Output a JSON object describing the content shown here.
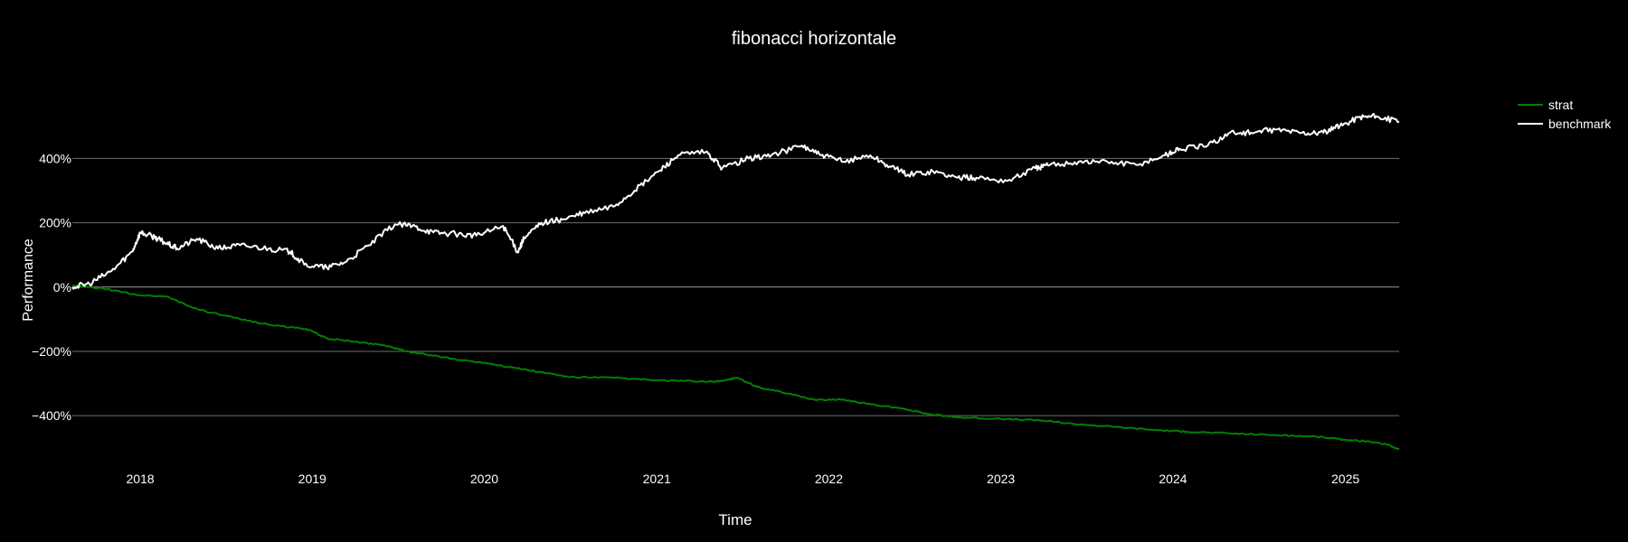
{
  "chart_data": {
    "type": "line",
    "title": "fibonacci horizontale",
    "xlabel": "Time",
    "ylabel": "Performance",
    "x_range": [
      "2017-08-10",
      "2025-04-25"
    ],
    "ylim": [
      -540,
      640
    ],
    "y_ticks": [
      400,
      200,
      0,
      -200,
      -400
    ],
    "y_tick_labels": [
      "400%",
      "200%",
      "0%",
      "−200%",
      "−400%"
    ],
    "x_ticks": [
      "2018-01-01",
      "2019-01-01",
      "2020-01-01",
      "2021-01-01",
      "2022-01-01",
      "2023-01-01",
      "2024-01-01",
      "2025-01-01"
    ],
    "x_tick_labels": [
      "2018",
      "2019",
      "2020",
      "2021",
      "2022",
      "2023",
      "2024",
      "2025"
    ],
    "grid": "horizontal",
    "legend_position": "top-right",
    "series": [
      {
        "name": "strat",
        "color": "#008000",
        "x": [
          "2017-08-10",
          "2017-10-15",
          "2017-12-30",
          "2018-03-01",
          "2018-04-15",
          "2018-06-01",
          "2018-08-01",
          "2018-10-15",
          "2018-12-20",
          "2019-02-01",
          "2019-04-01",
          "2019-06-01",
          "2019-07-20",
          "2019-09-01",
          "2019-11-01",
          "2020-01-01",
          "2020-03-01",
          "2020-05-01",
          "2020-07-01",
          "2020-10-01",
          "2021-01-01",
          "2021-03-01",
          "2021-05-01",
          "2021-06-01",
          "2021-06-20",
          "2021-08-01",
          "2021-10-01",
          "2021-12-01",
          "2022-02-01",
          "2022-04-01",
          "2022-06-15",
          "2022-08-01",
          "2022-10-01",
          "2023-01-01",
          "2023-04-01",
          "2023-06-01",
          "2023-09-01",
          "2023-12-01",
          "2024-02-01",
          "2024-05-01",
          "2024-08-01",
          "2024-11-01",
          "2025-01-01",
          "2025-02-15",
          "2025-04-01",
          "2025-04-25"
        ],
        "values": [
          5,
          -5,
          -25,
          -30,
          -60,
          -80,
          -100,
          -120,
          -130,
          -160,
          -170,
          -180,
          -200,
          -210,
          -225,
          -235,
          -250,
          -265,
          -280,
          -282,
          -290,
          -292,
          -295,
          -288,
          -282,
          -310,
          -330,
          -350,
          -350,
          -365,
          -380,
          -395,
          -405,
          -410,
          -415,
          -425,
          -435,
          -445,
          -450,
          -455,
          -460,
          -465,
          -475,
          -480,
          -490,
          -505
        ]
      },
      {
        "name": "benchmark",
        "color": "#ffffff",
        "x": [
          "2017-08-10",
          "2017-09-15",
          "2017-11-01",
          "2017-12-15",
          "2018-01-01",
          "2018-02-01",
          "2018-02-20",
          "2018-03-20",
          "2018-05-01",
          "2018-06-15",
          "2018-08-01",
          "2018-10-01",
          "2018-11-15",
          "2018-12-15",
          "2019-02-01",
          "2019-03-15",
          "2019-05-01",
          "2019-06-25",
          "2019-08-01",
          "2019-09-15",
          "2019-11-01",
          "2019-12-15",
          "2020-02-10",
          "2020-03-12",
          "2020-03-25",
          "2020-05-01",
          "2020-06-15",
          "2020-08-01",
          "2020-10-01",
          "2020-11-15",
          "2021-01-05",
          "2021-02-15",
          "2021-04-15",
          "2021-05-20",
          "2021-07-15",
          "2021-09-01",
          "2021-11-05",
          "2021-12-15",
          "2022-02-01",
          "2022-03-30",
          "2022-05-10",
          "2022-06-18",
          "2022-08-10",
          "2022-10-01",
          "2022-11-10",
          "2023-01-15",
          "2023-03-15",
          "2023-04-15",
          "2023-06-15",
          "2023-08-15",
          "2023-10-15",
          "2023-12-15",
          "2024-01-15",
          "2024-03-15",
          "2024-05-01",
          "2024-06-15",
          "2024-08-05",
          "2024-10-01",
          "2024-11-15",
          "2024-12-20",
          "2025-02-01",
          "2025-03-10",
          "2025-04-25"
        ],
        "values": [
          0,
          10,
          50,
          110,
          170,
          155,
          140,
          120,
          150,
          120,
          130,
          120,
          110,
          70,
          60,
          80,
          130,
          195,
          190,
          170,
          165,
          160,
          190,
          110,
          150,
          200,
          210,
          230,
          250,
          300,
          360,
          410,
          420,
          370,
          400,
          410,
          440,
          410,
          390,
          410,
          375,
          350,
          360,
          340,
          340,
          330,
          370,
          380,
          390,
          390,
          380,
          410,
          430,
          440,
          480,
          480,
          490,
          480,
          480,
          500,
          530,
          530,
          515
        ]
      }
    ]
  }
}
